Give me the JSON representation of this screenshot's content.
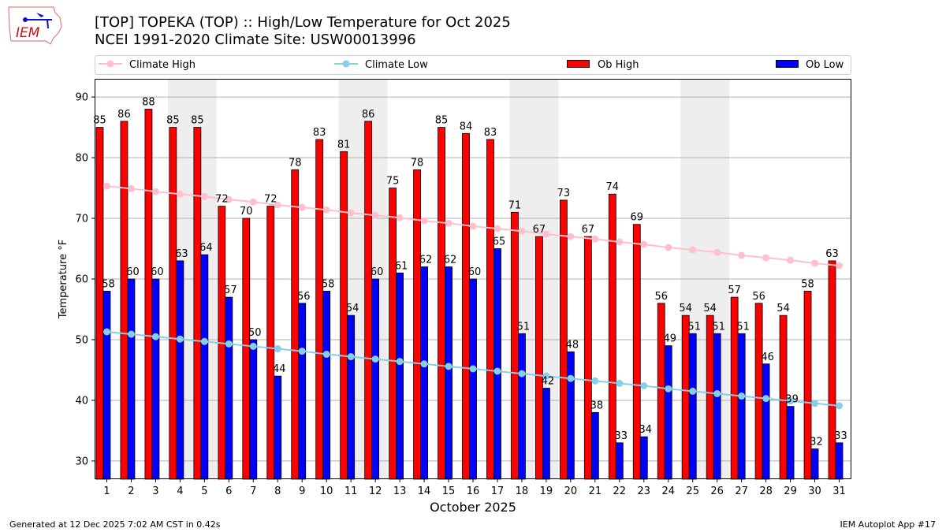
{
  "header": {
    "title_line1": "[TOP] TOPEKA (TOP) :: High/Low Temperature for Oct 2025",
    "title_line2": "NCEI 1991-2020 Climate Site: USW00013996",
    "logo_text": "IEM"
  },
  "footer": {
    "generated": "Generated at 12 Dec 2025 7:02 AM CST in 0.42s",
    "app": "IEM Autoplot App #17"
  },
  "chart_data": {
    "type": "bar",
    "title": "[TOP] TOPEKA (TOP) :: High/Low Temperature for Oct 2025",
    "xlabel": "October 2025",
    "ylabel": "Temperature °F",
    "ylim": [
      27,
      93
    ],
    "yticks": [
      30,
      40,
      50,
      60,
      70,
      80,
      90
    ],
    "grid": "horizontal",
    "legend_position": "top",
    "legend": [
      "Climate High",
      "Climate Low",
      "Ob High",
      "Ob Low"
    ],
    "colors": {
      "ob_high": "#ff0000",
      "ob_low": "#0000ff",
      "climate_high": "#ffc0cb",
      "climate_low": "#87ceeb",
      "weekend": "#eeeeee"
    },
    "weekend_days": [
      4,
      5,
      11,
      12,
      18,
      19,
      25,
      26
    ],
    "x": [
      1,
      2,
      3,
      4,
      5,
      6,
      7,
      8,
      9,
      10,
      11,
      12,
      13,
      14,
      15,
      16,
      17,
      18,
      19,
      20,
      21,
      22,
      23,
      24,
      25,
      26,
      27,
      28,
      29,
      30,
      31
    ],
    "series": [
      {
        "name": "Ob High",
        "type": "bar",
        "values": [
          85,
          86,
          88,
          85,
          85,
          72,
          70,
          72,
          78,
          83,
          81,
          86,
          75,
          78,
          85,
          84,
          83,
          71,
          67,
          73,
          67,
          74,
          69,
          56,
          54,
          54,
          57,
          56,
          54,
          58,
          63
        ]
      },
      {
        "name": "Ob Low",
        "type": "bar",
        "values": [
          58,
          60,
          60,
          63,
          64,
          57,
          50,
          44,
          56,
          58,
          54,
          60,
          61,
          62,
          62,
          60,
          65,
          51,
          42,
          48,
          38,
          33,
          34,
          49,
          51,
          51,
          51,
          46,
          39,
          32,
          33
        ]
      },
      {
        "name": "Climate High",
        "type": "line",
        "values": [
          75.3,
          74.9,
          74.4,
          74.0,
          73.6,
          73.1,
          72.7,
          72.2,
          71.8,
          71.4,
          70.9,
          70.5,
          70.1,
          69.6,
          69.2,
          68.7,
          68.3,
          67.9,
          67.4,
          67.0,
          66.6,
          66.1,
          65.7,
          65.2,
          64.8,
          64.4,
          63.9,
          63.5,
          63.1,
          62.6,
          62.2
        ]
      },
      {
        "name": "Climate Low",
        "type": "line",
        "values": [
          51.3,
          50.9,
          50.5,
          50.1,
          49.7,
          49.3,
          48.9,
          48.5,
          48.1,
          47.6,
          47.2,
          46.8,
          46.4,
          46.0,
          45.6,
          45.2,
          44.8,
          44.4,
          44.0,
          43.6,
          43.2,
          42.8,
          42.4,
          41.9,
          41.5,
          41.1,
          40.7,
          40.3,
          39.9,
          39.5,
          39.1
        ]
      }
    ]
  }
}
